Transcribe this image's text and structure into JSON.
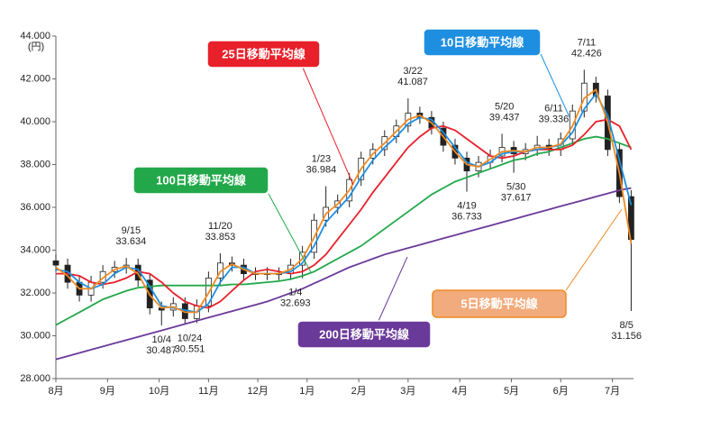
{
  "chart_data": {
    "type": "candlestick",
    "y_unit": "(円)",
    "xlim": [
      0,
      246
    ],
    "xticks": [
      {
        "value": 0,
        "label": "8月"
      },
      {
        "value": 22,
        "label": "9月"
      },
      {
        "value": 44,
        "label": "10月"
      },
      {
        "value": 65,
        "label": "11月"
      },
      {
        "value": 86,
        "label": "12月"
      },
      {
        "value": 107,
        "label": "1月"
      },
      {
        "value": 129,
        "label": "2月"
      },
      {
        "value": 150,
        "label": "3月"
      },
      {
        "value": 172,
        "label": "4月"
      },
      {
        "value": 194,
        "label": "5月"
      },
      {
        "value": 215,
        "label": "6月"
      },
      {
        "value": 237,
        "label": "7月"
      }
    ],
    "ylim": [
      28000,
      44000
    ],
    "yticks": [
      {
        "value": 28000,
        "label": "28.000"
      },
      {
        "value": 30000,
        "label": "30.000"
      },
      {
        "value": 32000,
        "label": "32.000"
      },
      {
        "value": 34000,
        "label": "34.000"
      },
      {
        "value": 36000,
        "label": "36.000"
      },
      {
        "value": 38000,
        "label": "38.000"
      },
      {
        "value": 40000,
        "label": "40.000"
      },
      {
        "value": 42000,
        "label": "42.000"
      },
      {
        "value": 44000,
        "label": "44.000"
      }
    ],
    "x": [
      0,
      5,
      10,
      15,
      20,
      25,
      30,
      35,
      40,
      45,
      50,
      55,
      60,
      65,
      70,
      75,
      80,
      85,
      90,
      95,
      100,
      105,
      110,
      115,
      120,
      125,
      130,
      135,
      140,
      145,
      150,
      155,
      160,
      165,
      170,
      175,
      180,
      185,
      190,
      195,
      200,
      205,
      210,
      215,
      220,
      225,
      230,
      235,
      240,
      245
    ],
    "open": [
      33500,
      33300,
      32500,
      31900,
      32500,
      33000,
      33200,
      33300,
      32600,
      31300,
      31200,
      31500,
      30800,
      31400,
      32700,
      33400,
      33300,
      32900,
      32900,
      32900,
      32900,
      33300,
      33900,
      35400,
      36000,
      36300,
      37300,
      38300,
      38700,
      39300,
      39800,
      40400,
      40200,
      39700,
      38900,
      38300,
      37700,
      38100,
      38400,
      38800,
      38500,
      38700,
      38900,
      38700,
      39200,
      40500,
      41800,
      41200,
      38700,
      36500
    ],
    "high": [
      33800,
      33600,
      32800,
      32800,
      33300,
      33500,
      33634,
      33600,
      32900,
      31600,
      31800,
      31800,
      31700,
      33000,
      33853,
      33700,
      33600,
      33200,
      33200,
      33200,
      33600,
      34200,
      35700,
      36984,
      36600,
      37600,
      38600,
      39000,
      39600,
      40100,
      41087,
      40700,
      40500,
      40000,
      39200,
      38600,
      38400,
      38700,
      39437,
      39100,
      39000,
      39336,
      39200,
      39500,
      40800,
      42426,
      42100,
      41500,
      39000,
      36800
    ],
    "low": [
      33000,
      32200,
      31600,
      31600,
      32200,
      32700,
      32900,
      32300,
      31000,
      30487,
      30900,
      30551,
      30600,
      31100,
      32400,
      33000,
      32600,
      32600,
      32600,
      32600,
      32600,
      32693,
      33600,
      35100,
      35700,
      36000,
      37000,
      38000,
      38400,
      39000,
      39500,
      39900,
      39400,
      38600,
      38000,
      36733,
      37400,
      37800,
      38100,
      37617,
      38200,
      38400,
      38400,
      38400,
      38900,
      40200,
      40900,
      38400,
      36200,
      31156
    ],
    "close": [
      33300,
      32500,
      31900,
      32500,
      33000,
      33200,
      33300,
      32600,
      31300,
      31200,
      31500,
      30800,
      31400,
      32700,
      33400,
      33300,
      32900,
      32900,
      32900,
      32900,
      33300,
      33900,
      35400,
      36000,
      36300,
      37300,
      38300,
      38700,
      39300,
      39800,
      40400,
      40200,
      39700,
      38900,
      38300,
      37700,
      38100,
      38400,
      38800,
      38500,
      38700,
      38900,
      38700,
      39200,
      40500,
      41800,
      41200,
      38700,
      36500,
      34500
    ],
    "series": [
      {
        "name": "5日移動平均線",
        "color": "#f08a24",
        "values": [
          33200,
          32800,
          32200,
          32200,
          32700,
          33100,
          33250,
          32900,
          31900,
          31300,
          31350,
          31100,
          31100,
          32000,
          33000,
          33350,
          33100,
          32900,
          32900,
          32900,
          33100,
          33600,
          34600,
          35700,
          36150,
          36800,
          37800,
          38500,
          39000,
          39550,
          40100,
          40300,
          39950,
          39300,
          38600,
          38000,
          37900,
          38250,
          38600,
          38650,
          38600,
          38800,
          38800,
          38950,
          39800,
          41100,
          41500,
          40000,
          37600,
          34300
        ]
      },
      {
        "name": "10日移動平均線",
        "color": "#1e8fe0",
        "values": [
          33100,
          33000,
          32500,
          32200,
          32400,
          32900,
          33200,
          33100,
          32300,
          31400,
          31300,
          31200,
          31100,
          31500,
          32500,
          33200,
          33200,
          32900,
          32900,
          32900,
          33000,
          33400,
          34200,
          35300,
          35900,
          36500,
          37400,
          38200,
          38800,
          39300,
          39900,
          40200,
          40100,
          39500,
          38800,
          38100,
          37900,
          38100,
          38500,
          38600,
          38600,
          38700,
          38800,
          38900,
          39500,
          40600,
          41300,
          40300,
          38200,
          36100
        ]
      },
      {
        "name": "25日移動平均線",
        "color": "#e8202a",
        "values": [
          32900,
          32900,
          32800,
          32500,
          32400,
          32500,
          32700,
          33000,
          32900,
          32500,
          32000,
          31600,
          31400,
          31300,
          31600,
          32100,
          32600,
          33000,
          33100,
          33000,
          32900,
          33000,
          33300,
          33800,
          34500,
          35200,
          35900,
          36700,
          37400,
          38100,
          38800,
          39300,
          39700,
          39800,
          39600,
          39200,
          38800,
          38400,
          38300,
          38400,
          38600,
          38700,
          38700,
          38700,
          38900,
          39400,
          40000,
          40100,
          39800,
          38700
        ]
      },
      {
        "name": "100日移動平均線",
        "color": "#22a84a",
        "values": [
          30500,
          30800,
          31100,
          31400,
          31700,
          31900,
          32100,
          32250,
          32300,
          32350,
          32350,
          32350,
          32350,
          32350,
          32350,
          32400,
          32400,
          32450,
          32500,
          32550,
          32650,
          32800,
          33000,
          33300,
          33600,
          33900,
          34200,
          34600,
          35000,
          35400,
          35800,
          36200,
          36600,
          36900,
          37200,
          37400,
          37600,
          37800,
          38000,
          38200,
          38300,
          38500,
          38600,
          38800,
          39000,
          39200,
          39300,
          39200,
          39000,
          38800
        ]
      },
      {
        "name": "200日移動平均線",
        "color": "#6a3a9a",
        "values": [
          28900,
          29050,
          29200,
          29350,
          29500,
          29650,
          29800,
          29950,
          30100,
          30250,
          30400,
          30550,
          30700,
          30850,
          31000,
          31150,
          31300,
          31450,
          31600,
          31800,
          32000,
          32200,
          32450,
          32700,
          32950,
          33200,
          33400,
          33600,
          33800,
          33950,
          34100,
          34250,
          34400,
          34550,
          34700,
          34850,
          35000,
          35150,
          35300,
          35450,
          35600,
          35750,
          35900,
          36050,
          36200,
          36350,
          36500,
          36650,
          36800,
          36900
        ]
      }
    ],
    "annotations": [
      {
        "x": 32,
        "value": 33634,
        "date": "9/15",
        "value_label": "33.634",
        "position": "above"
      },
      {
        "x": 45,
        "value": 30487,
        "date": "10/4",
        "value_label": "30.487",
        "position": "below"
      },
      {
        "x": 57,
        "value": 30551,
        "date": "10/24",
        "value_label": "30.551",
        "position": "below"
      },
      {
        "x": 70,
        "value": 33853,
        "date": "11/20",
        "value_label": "33.853",
        "position": "above"
      },
      {
        "x": 102,
        "value": 32693,
        "date": "1/4",
        "value_label": "32.693",
        "position": "below"
      },
      {
        "x": 113,
        "value": 36984,
        "date": "1/23",
        "value_label": "36.984",
        "position": "above"
      },
      {
        "x": 152,
        "value": 41087,
        "date": "3/22",
        "value_label": "41.087",
        "position": "above"
      },
      {
        "x": 175,
        "value": 36733,
        "date": "4/19",
        "value_label": "36.733",
        "position": "below"
      },
      {
        "x": 191,
        "value": 39437,
        "date": "5/20",
        "value_label": "39.437",
        "position": "above"
      },
      {
        "x": 196,
        "value": 37617,
        "date": "5/30",
        "value_label": "37.617",
        "position": "below"
      },
      {
        "x": 212,
        "value": 39336,
        "date": "6/11",
        "value_label": "39.336",
        "position": "above"
      },
      {
        "x": 226,
        "value": 42426,
        "date": "7/11",
        "value_label": "42.426",
        "position": "above"
      },
      {
        "x": 243,
        "value": 31156,
        "date": "8/5",
        "value_label": "31.156",
        "position": "below"
      }
    ]
  }
}
